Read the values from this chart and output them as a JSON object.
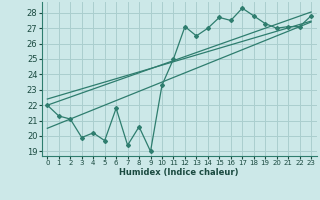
{
  "x": [
    0,
    1,
    2,
    3,
    4,
    5,
    6,
    7,
    8,
    9,
    10,
    11,
    12,
    13,
    14,
    15,
    16,
    17,
    18,
    19,
    20,
    21,
    22,
    23
  ],
  "y_scatter": [
    22.0,
    21.3,
    21.1,
    19.9,
    20.2,
    19.7,
    21.8,
    19.4,
    20.6,
    19.0,
    23.3,
    25.0,
    27.1,
    26.5,
    27.0,
    27.7,
    27.5,
    28.3,
    27.8,
    27.3,
    27.0,
    27.1,
    27.1,
    27.8
  ],
  "line_color": "#2e7d6e",
  "bg_color": "#cce8e8",
  "grid_color": "#aacece",
  "xlabel": "Humidex (Indice chaleur)",
  "xlim": [
    -0.5,
    23.5
  ],
  "ylim": [
    18.7,
    28.7
  ],
  "yticks": [
    19,
    20,
    21,
    22,
    23,
    24,
    25,
    26,
    27,
    28
  ],
  "xticks": [
    0,
    1,
    2,
    3,
    4,
    5,
    6,
    7,
    8,
    9,
    10,
    11,
    12,
    13,
    14,
    15,
    16,
    17,
    18,
    19,
    20,
    21,
    22,
    23
  ],
  "line1_slope": 0.263,
  "line1_intercept": 22.0,
  "line2_slope": 0.22,
  "line2_intercept": 22.4,
  "line3_slope": 0.3,
  "line3_intercept": 20.5
}
